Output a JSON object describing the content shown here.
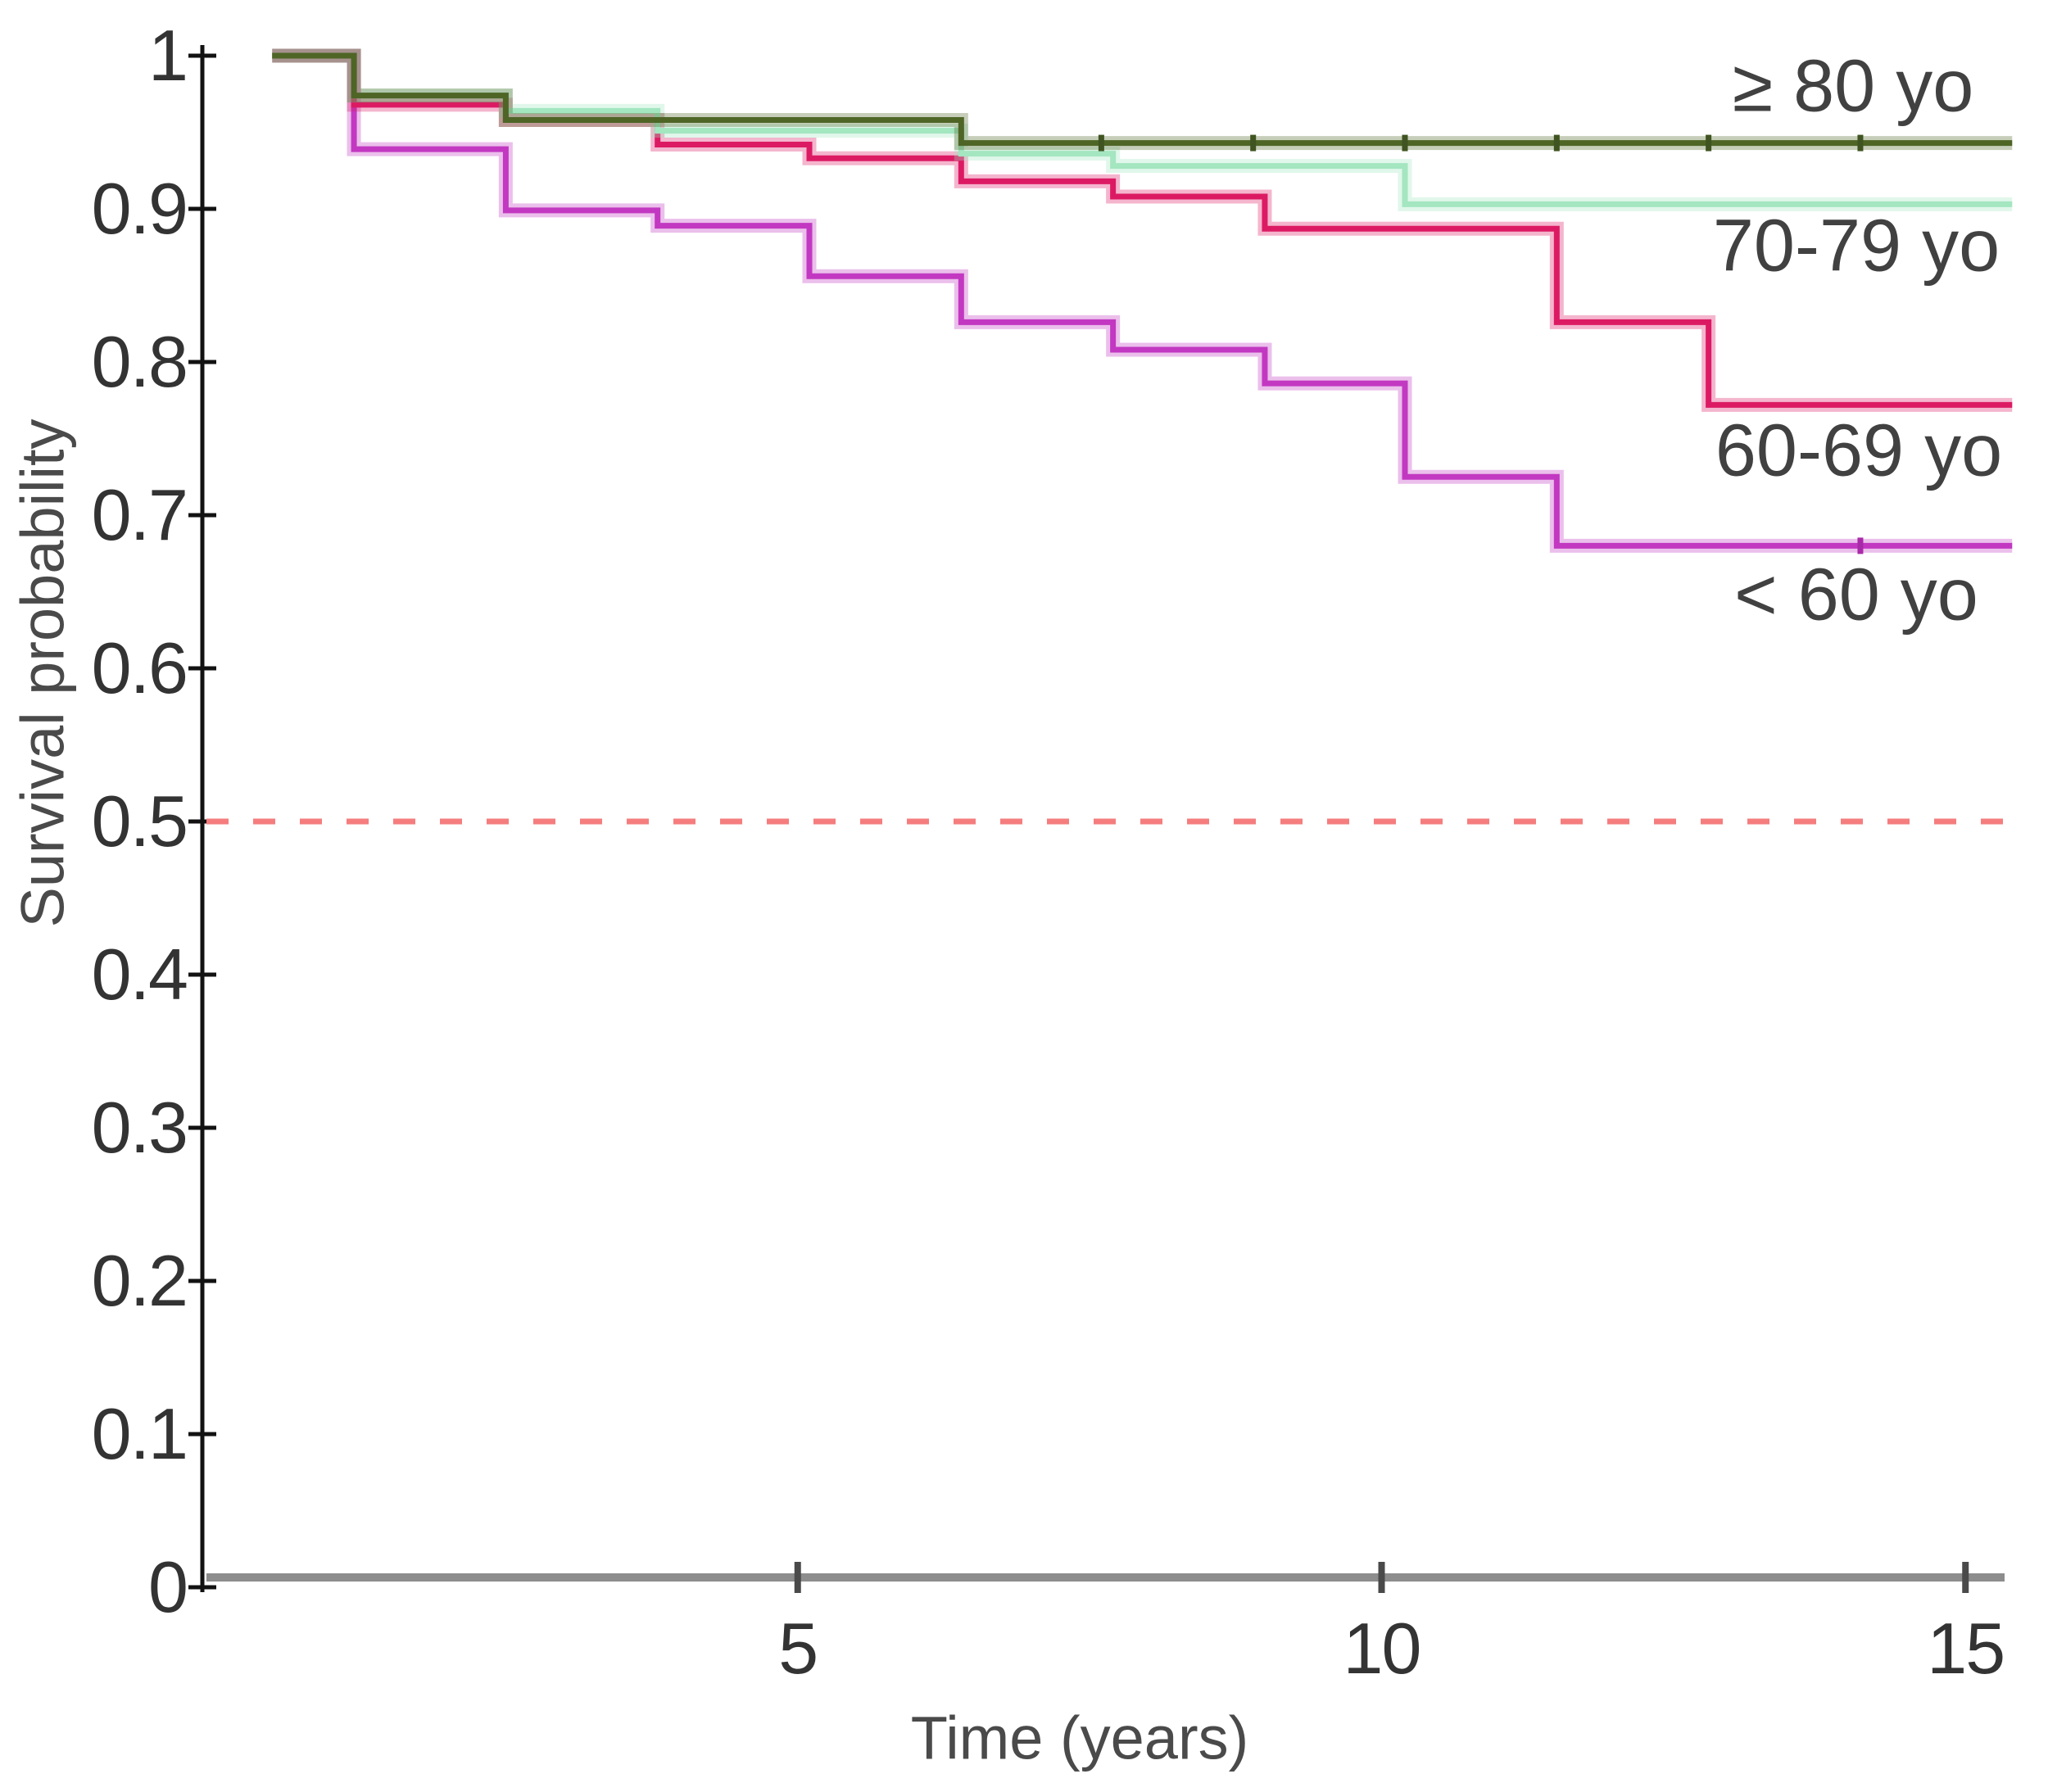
{
  "chart_data": {
    "type": "line",
    "subtype": "kaplan-meier-step",
    "title": "",
    "xlabel": "Time (years)",
    "ylabel": "Survival probability",
    "xlim": [
      0,
      15.5
    ],
    "ylim": [
      0,
      1
    ],
    "x_ticks": [
      5,
      10,
      15
    ],
    "y_ticks": [
      1,
      0.9,
      0.8,
      0.7,
      0.6,
      0.5,
      0.4,
      0.3,
      0.2,
      0.1,
      0
    ],
    "grid": "off",
    "legend_position": "right-inline",
    "start_time": 0.5,
    "end_time": 15.4,
    "reference_line": {
      "y": 0.5,
      "style": "dashed",
      "color": "#f57d7e"
    },
    "axis_colors": {
      "y_axis": "#121212",
      "x_axis": "#8d8d8d",
      "x_tick": "#4a4a4a"
    },
    "series": [
      {
        "name": "≥ 80 yo",
        "color": "#4e6526",
        "censor_color": "#3f5420",
        "points": [
          [
            0.5,
            1.0
          ],
          [
            1.2,
            0.974
          ],
          [
            2.5,
            0.958
          ],
          [
            6.4,
            0.943
          ]
        ],
        "censor_times": [
          7.6,
          8.9,
          10.2,
          11.5,
          12.8,
          14.1
        ],
        "final_value": 0.943
      },
      {
        "name": "70-79 yo",
        "color": "#a3e6c0",
        "censor_color": "#8fdcb2",
        "points": [
          [
            0.5,
            1.0
          ],
          [
            1.2,
            0.974
          ],
          [
            2.5,
            0.964
          ],
          [
            3.8,
            0.951
          ],
          [
            6.4,
            0.936
          ],
          [
            7.7,
            0.928
          ],
          [
            10.2,
            0.903
          ]
        ],
        "censor_times": [],
        "final_value": 0.903
      },
      {
        "name": "60-69 yo",
        "color": "#dc1a64",
        "censor_color": "#b81253",
        "points": [
          [
            0.5,
            1.0
          ],
          [
            1.2,
            0.968
          ],
          [
            2.5,
            0.958
          ],
          [
            3.8,
            0.942
          ],
          [
            5.1,
            0.933
          ],
          [
            6.4,
            0.918
          ],
          [
            7.7,
            0.908
          ],
          [
            9.0,
            0.887
          ],
          [
            11.5,
            0.826
          ],
          [
            12.8,
            0.772
          ]
        ],
        "censor_times": [],
        "final_value": 0.772
      },
      {
        "name": "< 60 yo",
        "color": "#c238c1",
        "censor_color": "#a92aa9",
        "points": [
          [
            0.5,
            1.0
          ],
          [
            1.2,
            0.939
          ],
          [
            2.5,
            0.899
          ],
          [
            3.8,
            0.889
          ],
          [
            5.1,
            0.856
          ],
          [
            6.4,
            0.826
          ],
          [
            7.7,
            0.808
          ],
          [
            9.0,
            0.786
          ],
          [
            10.2,
            0.725
          ],
          [
            11.5,
            0.68
          ]
        ],
        "censor_times": [
          14.1
        ],
        "final_value": 0.68
      }
    ]
  }
}
